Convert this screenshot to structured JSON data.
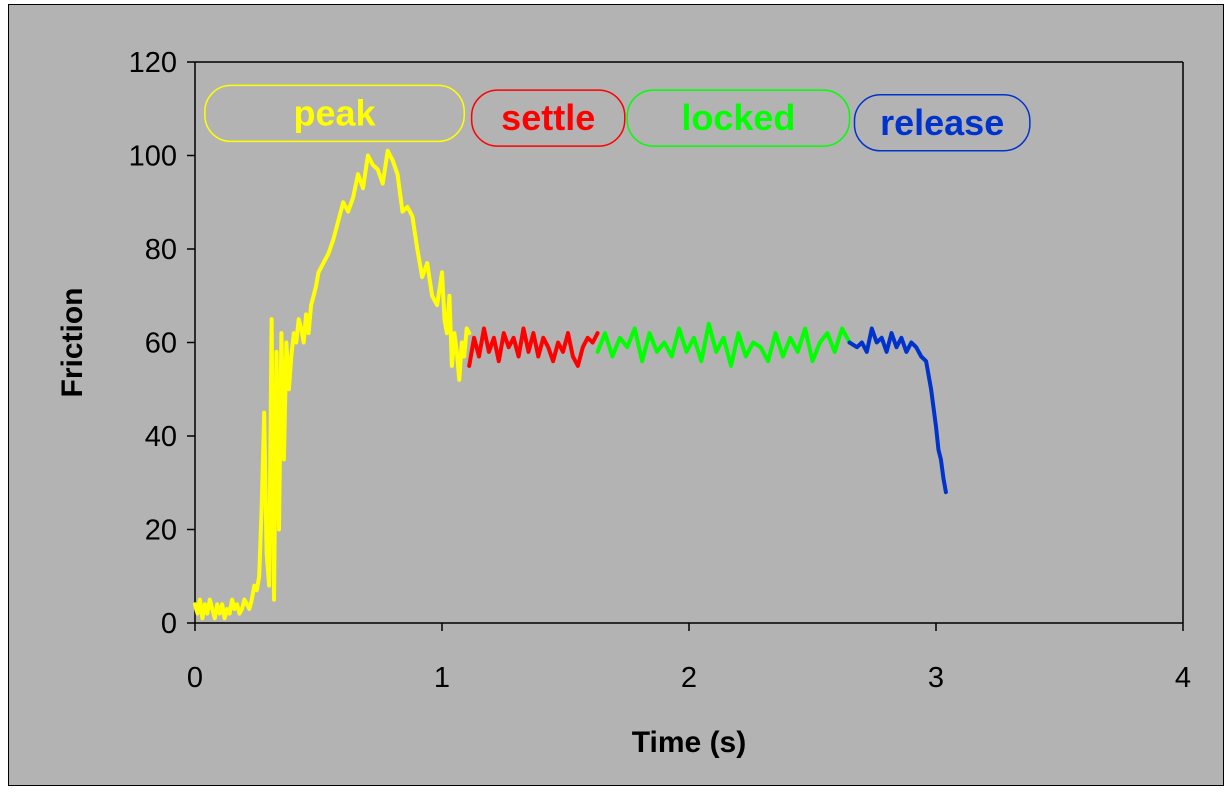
{
  "chart_data": {
    "type": "line",
    "title": "",
    "xlabel": "Time (s)",
    "ylabel": "Friction",
    "xlim": [
      0,
      4
    ],
    "ylim": [
      0,
      120
    ],
    "x_ticks": [
      0,
      1,
      2,
      3,
      4
    ],
    "y_ticks": [
      0,
      20,
      40,
      60,
      80,
      100,
      120
    ],
    "grid": false,
    "background_color": "#b3b3b3",
    "legend": "none",
    "phase_labels": [
      {
        "text": "peak",
        "color": "#ffff00",
        "x_start": 0.04,
        "x_end": 1.09,
        "y_mid": 109
      },
      {
        "text": "settle",
        "color": "#ff0000",
        "x_start": 1.12,
        "x_end": 1.74,
        "y_mid": 108
      },
      {
        "text": "locked",
        "color": "#00ff00",
        "x_start": 1.75,
        "x_end": 2.65,
        "y_mid": 108
      },
      {
        "text": "release",
        "color": "#0033cc",
        "x_start": 2.67,
        "x_end": 3.38,
        "y_mid": 107
      }
    ],
    "series": [
      {
        "color": "#ffff00",
        "x": [
          0.0,
          0.01,
          0.02,
          0.03,
          0.04,
          0.05,
          0.06,
          0.07,
          0.08,
          0.09,
          0.1,
          0.11,
          0.12,
          0.13,
          0.14,
          0.15,
          0.16,
          0.17,
          0.18,
          0.19,
          0.2,
          0.21,
          0.22,
          0.23,
          0.24,
          0.25,
          0.26,
          0.27,
          0.28,
          0.29,
          0.3,
          0.31,
          0.32,
          0.33,
          0.34,
          0.35,
          0.36,
          0.37,
          0.38,
          0.39,
          0.4,
          0.41,
          0.42,
          0.43,
          0.44,
          0.45,
          0.46,
          0.47,
          0.48,
          0.49,
          0.5,
          0.52,
          0.54,
          0.56,
          0.58,
          0.6,
          0.62,
          0.64,
          0.66,
          0.68,
          0.7,
          0.72,
          0.74,
          0.76,
          0.78,
          0.8,
          0.82,
          0.84,
          0.86,
          0.88,
          0.9,
          0.92,
          0.94,
          0.96,
          0.98,
          1.0,
          1.01,
          1.02,
          1.03,
          1.04,
          1.05,
          1.06,
          1.07,
          1.08,
          1.09,
          1.1,
          1.11
        ],
        "y": [
          4,
          2,
          5,
          1,
          4,
          2,
          5,
          3,
          1,
          4,
          2,
          4,
          1,
          3,
          2,
          5,
          3,
          4,
          2,
          3,
          5,
          4,
          3,
          5,
          8,
          7,
          10,
          25,
          45,
          15,
          8,
          65,
          5,
          58,
          20,
          62,
          35,
          60,
          50,
          57,
          62,
          60,
          65,
          63,
          60,
          66,
          62,
          68,
          70,
          72,
          75,
          77,
          79,
          82,
          86,
          90,
          88,
          91,
          96,
          93,
          100,
          98,
          97,
          94,
          101,
          99,
          96,
          88,
          89,
          87,
          80,
          74,
          77,
          70,
          68,
          75,
          65,
          62,
          70,
          55,
          62,
          58,
          52,
          60,
          57,
          63,
          62
        ]
      },
      {
        "color": "#ff0000",
        "x": [
          1.11,
          1.13,
          1.15,
          1.17,
          1.19,
          1.21,
          1.23,
          1.25,
          1.27,
          1.29,
          1.31,
          1.33,
          1.35,
          1.37,
          1.39,
          1.41,
          1.43,
          1.45,
          1.47,
          1.49,
          1.51,
          1.53,
          1.55,
          1.57,
          1.59,
          1.61,
          1.63
        ],
        "y": [
          55,
          61,
          57,
          63,
          58,
          61,
          56,
          62,
          59,
          61,
          57,
          63,
          58,
          62,
          57,
          61,
          59,
          56,
          60,
          58,
          62,
          57,
          55,
          59,
          61,
          60,
          62
        ]
      },
      {
        "color": "#00ff00",
        "x": [
          1.63,
          1.66,
          1.69,
          1.72,
          1.75,
          1.78,
          1.81,
          1.84,
          1.87,
          1.9,
          1.93,
          1.96,
          1.99,
          2.02,
          2.05,
          2.08,
          2.11,
          2.14,
          2.17,
          2.2,
          2.23,
          2.26,
          2.29,
          2.32,
          2.35,
          2.38,
          2.41,
          2.44,
          2.47,
          2.5,
          2.53,
          2.56,
          2.59,
          2.62,
          2.65
        ],
        "y": [
          58,
          62,
          57,
          61,
          59,
          63,
          56,
          62,
          58,
          60,
          57,
          63,
          58,
          61,
          56,
          64,
          58,
          61,
          55,
          62,
          57,
          60,
          59,
          56,
          62,
          57,
          61,
          58,
          63,
          56,
          60,
          62,
          58,
          63,
          60
        ]
      },
      {
        "color": "#0033cc",
        "x": [
          2.65,
          2.68,
          2.7,
          2.72,
          2.74,
          2.76,
          2.78,
          2.8,
          2.82,
          2.84,
          2.86,
          2.88,
          2.9,
          2.92,
          2.94,
          2.96,
          2.98,
          3.0,
          3.01,
          3.02,
          3.03,
          3.04
        ],
        "y": [
          60,
          59,
          60,
          58,
          63,
          60,
          61,
          58,
          62,
          59,
          61,
          58,
          60,
          59,
          57,
          56,
          50,
          42,
          37,
          35,
          31,
          28
        ]
      }
    ]
  }
}
